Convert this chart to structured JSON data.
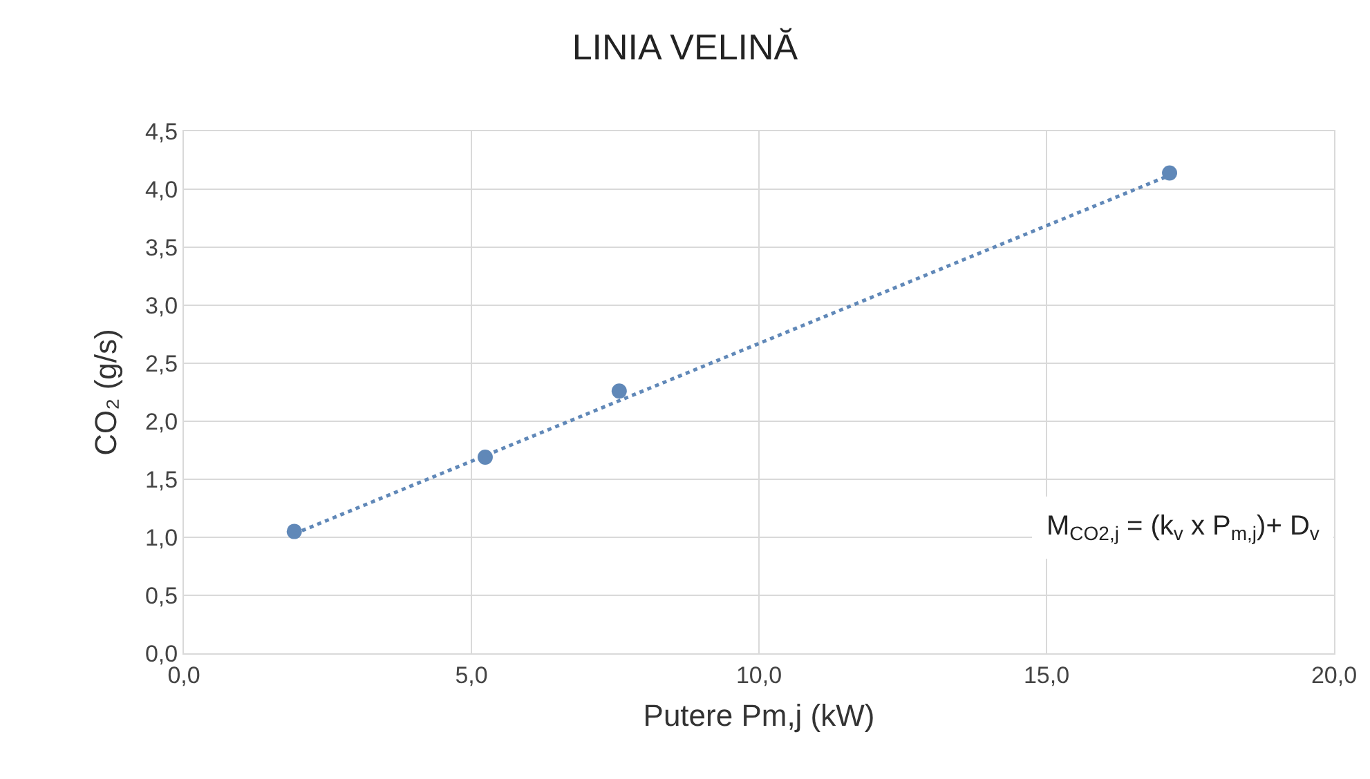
{
  "chart_data": {
    "type": "scatter",
    "title": "LINIA VELINĂ",
    "xlabel": "Putere Pm,j (kW)",
    "ylabel": "CO₂ (g/s)",
    "series": [
      {
        "color": "#6088b8",
        "marker": "circle",
        "x": [
          1.92,
          5.24,
          7.57,
          17.14
        ],
        "values": [
          1.05,
          1.69,
          2.26,
          4.14
        ]
      },
      {
        "type": "line",
        "color": "#6088b8",
        "marker": "none",
        "line_style": "dotted",
        "x": [
          1.92,
          17.14
        ],
        "values": [
          1.03,
          4.12
        ]
      }
    ],
    "xlim": [
      0,
      20
    ],
    "xticks": [
      {
        "value": 0,
        "label": "0,0"
      },
      {
        "value": 5,
        "label": "5,0"
      },
      {
        "value": 10,
        "label": "10,0"
      },
      {
        "value": 15,
        "label": "15,0"
      },
      {
        "value": 20,
        "label": "20,0"
      }
    ],
    "ylim": [
      0,
      4.5
    ],
    "yticks": [
      {
        "value": 0,
        "label": "0,0"
      },
      {
        "value": 0.5,
        "label": "0,5"
      },
      {
        "value": 1,
        "label": "1,0"
      },
      {
        "value": 1.5,
        "label": "1,5"
      },
      {
        "value": 2,
        "label": "2,0"
      },
      {
        "value": 2.5,
        "label": "2,5"
      },
      {
        "value": 3,
        "label": "3,0"
      },
      {
        "value": 3.5,
        "label": "3,5"
      },
      {
        "value": 4,
        "label": "4,0"
      },
      {
        "value": 4.5,
        "label": "4,5"
      }
    ],
    "grid": true,
    "annotations": [
      "M$_{CO2,j}$ = (k$_{v}$ x P$_{m,j}$)+ D$_{v}$"
    ]
  }
}
